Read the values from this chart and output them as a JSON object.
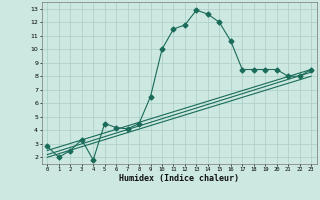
{
  "xlabel": "Humidex (Indice chaleur)",
  "ylabel": "",
  "xlim": [
    -0.5,
    23.5
  ],
  "ylim": [
    1.5,
    13.5
  ],
  "xticks": [
    0,
    1,
    2,
    3,
    4,
    5,
    6,
    7,
    8,
    9,
    10,
    11,
    12,
    13,
    14,
    15,
    16,
    17,
    18,
    19,
    20,
    21,
    22,
    23
  ],
  "yticks": [
    2,
    3,
    4,
    5,
    6,
    7,
    8,
    9,
    10,
    11,
    12,
    13
  ],
  "bg_color": "#cce8e0",
  "grid_color": "#aacec6",
  "line_color": "#1a6b5a",
  "line1_x": [
    0,
    1,
    2,
    3,
    4,
    5,
    6,
    7,
    8,
    9,
    10,
    11,
    12,
    13,
    14,
    15,
    16,
    17,
    18,
    19,
    20,
    21,
    22,
    23
  ],
  "line1_y": [
    2.8,
    2.0,
    2.5,
    3.3,
    1.8,
    4.5,
    4.2,
    4.1,
    4.5,
    6.5,
    10.0,
    11.5,
    11.8,
    12.9,
    12.6,
    12.0,
    10.6,
    8.5,
    8.5,
    8.5,
    8.5,
    8.0,
    8.0,
    8.5
  ],
  "line2_x": [
    0,
    23
  ],
  "line2_y": [
    2.5,
    8.5
  ],
  "line3_x": [
    0,
    23
  ],
  "line3_y": [
    2.0,
    8.0
  ],
  "line4_x": [
    0,
    23
  ],
  "line4_y": [
    2.2,
    8.3
  ]
}
